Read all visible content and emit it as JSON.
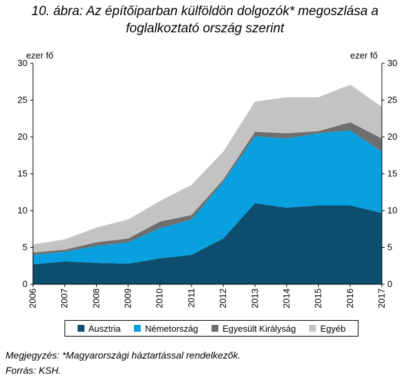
{
  "header": {
    "title_line1": "10. ábra: Az építőiparban külföldön dolgozók* megoszlása a",
    "title_line2": "foglalkoztató ország szerint"
  },
  "units": {
    "left": "ezer fő",
    "right": "ezer fő"
  },
  "notes": {
    "note": "Megjegyzés: *Magyarországi háztartással rendelkezők.",
    "source": "Forrás: KSH."
  },
  "chart_data": {
    "type": "area",
    "stacked": true,
    "x": [
      "2006",
      "2007",
      "2008",
      "2009",
      "2010",
      "2011",
      "2012",
      "2013",
      "2014",
      "2015",
      "2016",
      "2017"
    ],
    "ylim": [
      0,
      30
    ],
    "yticks": [
      0,
      5,
      10,
      15,
      20,
      25,
      30
    ],
    "y2lim": [
      0,
      30
    ],
    "y2ticks": [
      0,
      5,
      10,
      15,
      20,
      25,
      30
    ],
    "grid": false,
    "legend_position": "bottom",
    "series": [
      {
        "name": "Ausztria",
        "color": "#0d4d6e",
        "values": [
          2.7,
          3.1,
          2.9,
          2.8,
          3.5,
          4.0,
          6.2,
          11.0,
          10.4,
          10.7,
          10.7,
          9.7
        ]
      },
      {
        "name": "Németország",
        "color": "#08a0de",
        "values": [
          1.3,
          1.3,
          2.3,
          2.9,
          4.1,
          4.8,
          7.7,
          9.1,
          9.4,
          9.8,
          10.2,
          8.3
        ]
      },
      {
        "name": "Egyesült Királyság",
        "color": "#6e6e6e",
        "values": [
          0.3,
          0.3,
          0.5,
          0.5,
          0.9,
          0.6,
          0.3,
          0.6,
          0.7,
          0.3,
          1.1,
          1.8
        ]
      },
      {
        "name": "Egyéb",
        "color": "#c3c3c3",
        "values": [
          1.1,
          1.4,
          2.0,
          2.6,
          2.8,
          4.1,
          3.8,
          4.1,
          4.9,
          4.6,
          5.1,
          4.3
        ]
      }
    ]
  }
}
